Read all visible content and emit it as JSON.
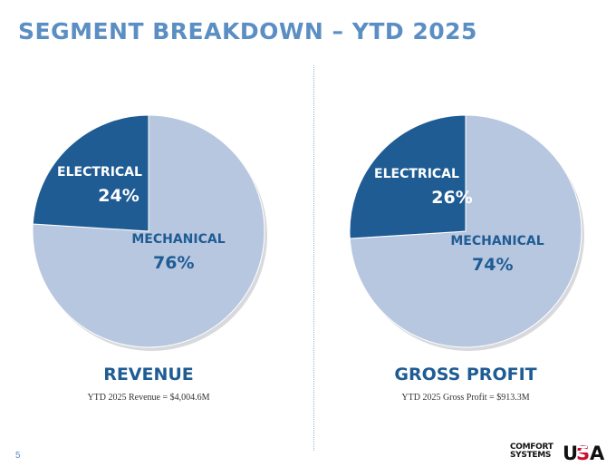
{
  "title": "SEGMENT BREAKDOWN – YTD 2025",
  "page_number": "5",
  "colors": {
    "title": "#5b8ec3",
    "dark_segment": "#1f5c94",
    "light_segment": "#b8c7e0",
    "divider": "#8fb6cf"
  },
  "logo": {
    "line1": "COMFORT",
    "line2": "SYSTEMS",
    "mark": "USA"
  },
  "chart_data": [
    {
      "type": "pie",
      "title": "REVENUE",
      "subtitle": "YTD 2025 Revenue = $4,004.6M",
      "slices": [
        {
          "label": "ELECTRICAL",
          "value": 24,
          "display": "24%",
          "color": "#1f5c94"
        },
        {
          "label": "MECHANICAL",
          "value": 76,
          "display": "76%",
          "color": "#b8c7e0"
        }
      ]
    },
    {
      "type": "pie",
      "title": "GROSS PROFIT",
      "subtitle": "YTD 2025 Gross Profit = $913.3M",
      "slices": [
        {
          "label": "ELECTRICAL",
          "value": 26,
          "display": "26%",
          "color": "#1f5c94"
        },
        {
          "label": "MECHANICAL",
          "value": 74,
          "display": "74%",
          "color": "#b8c7e0"
        }
      ]
    }
  ]
}
